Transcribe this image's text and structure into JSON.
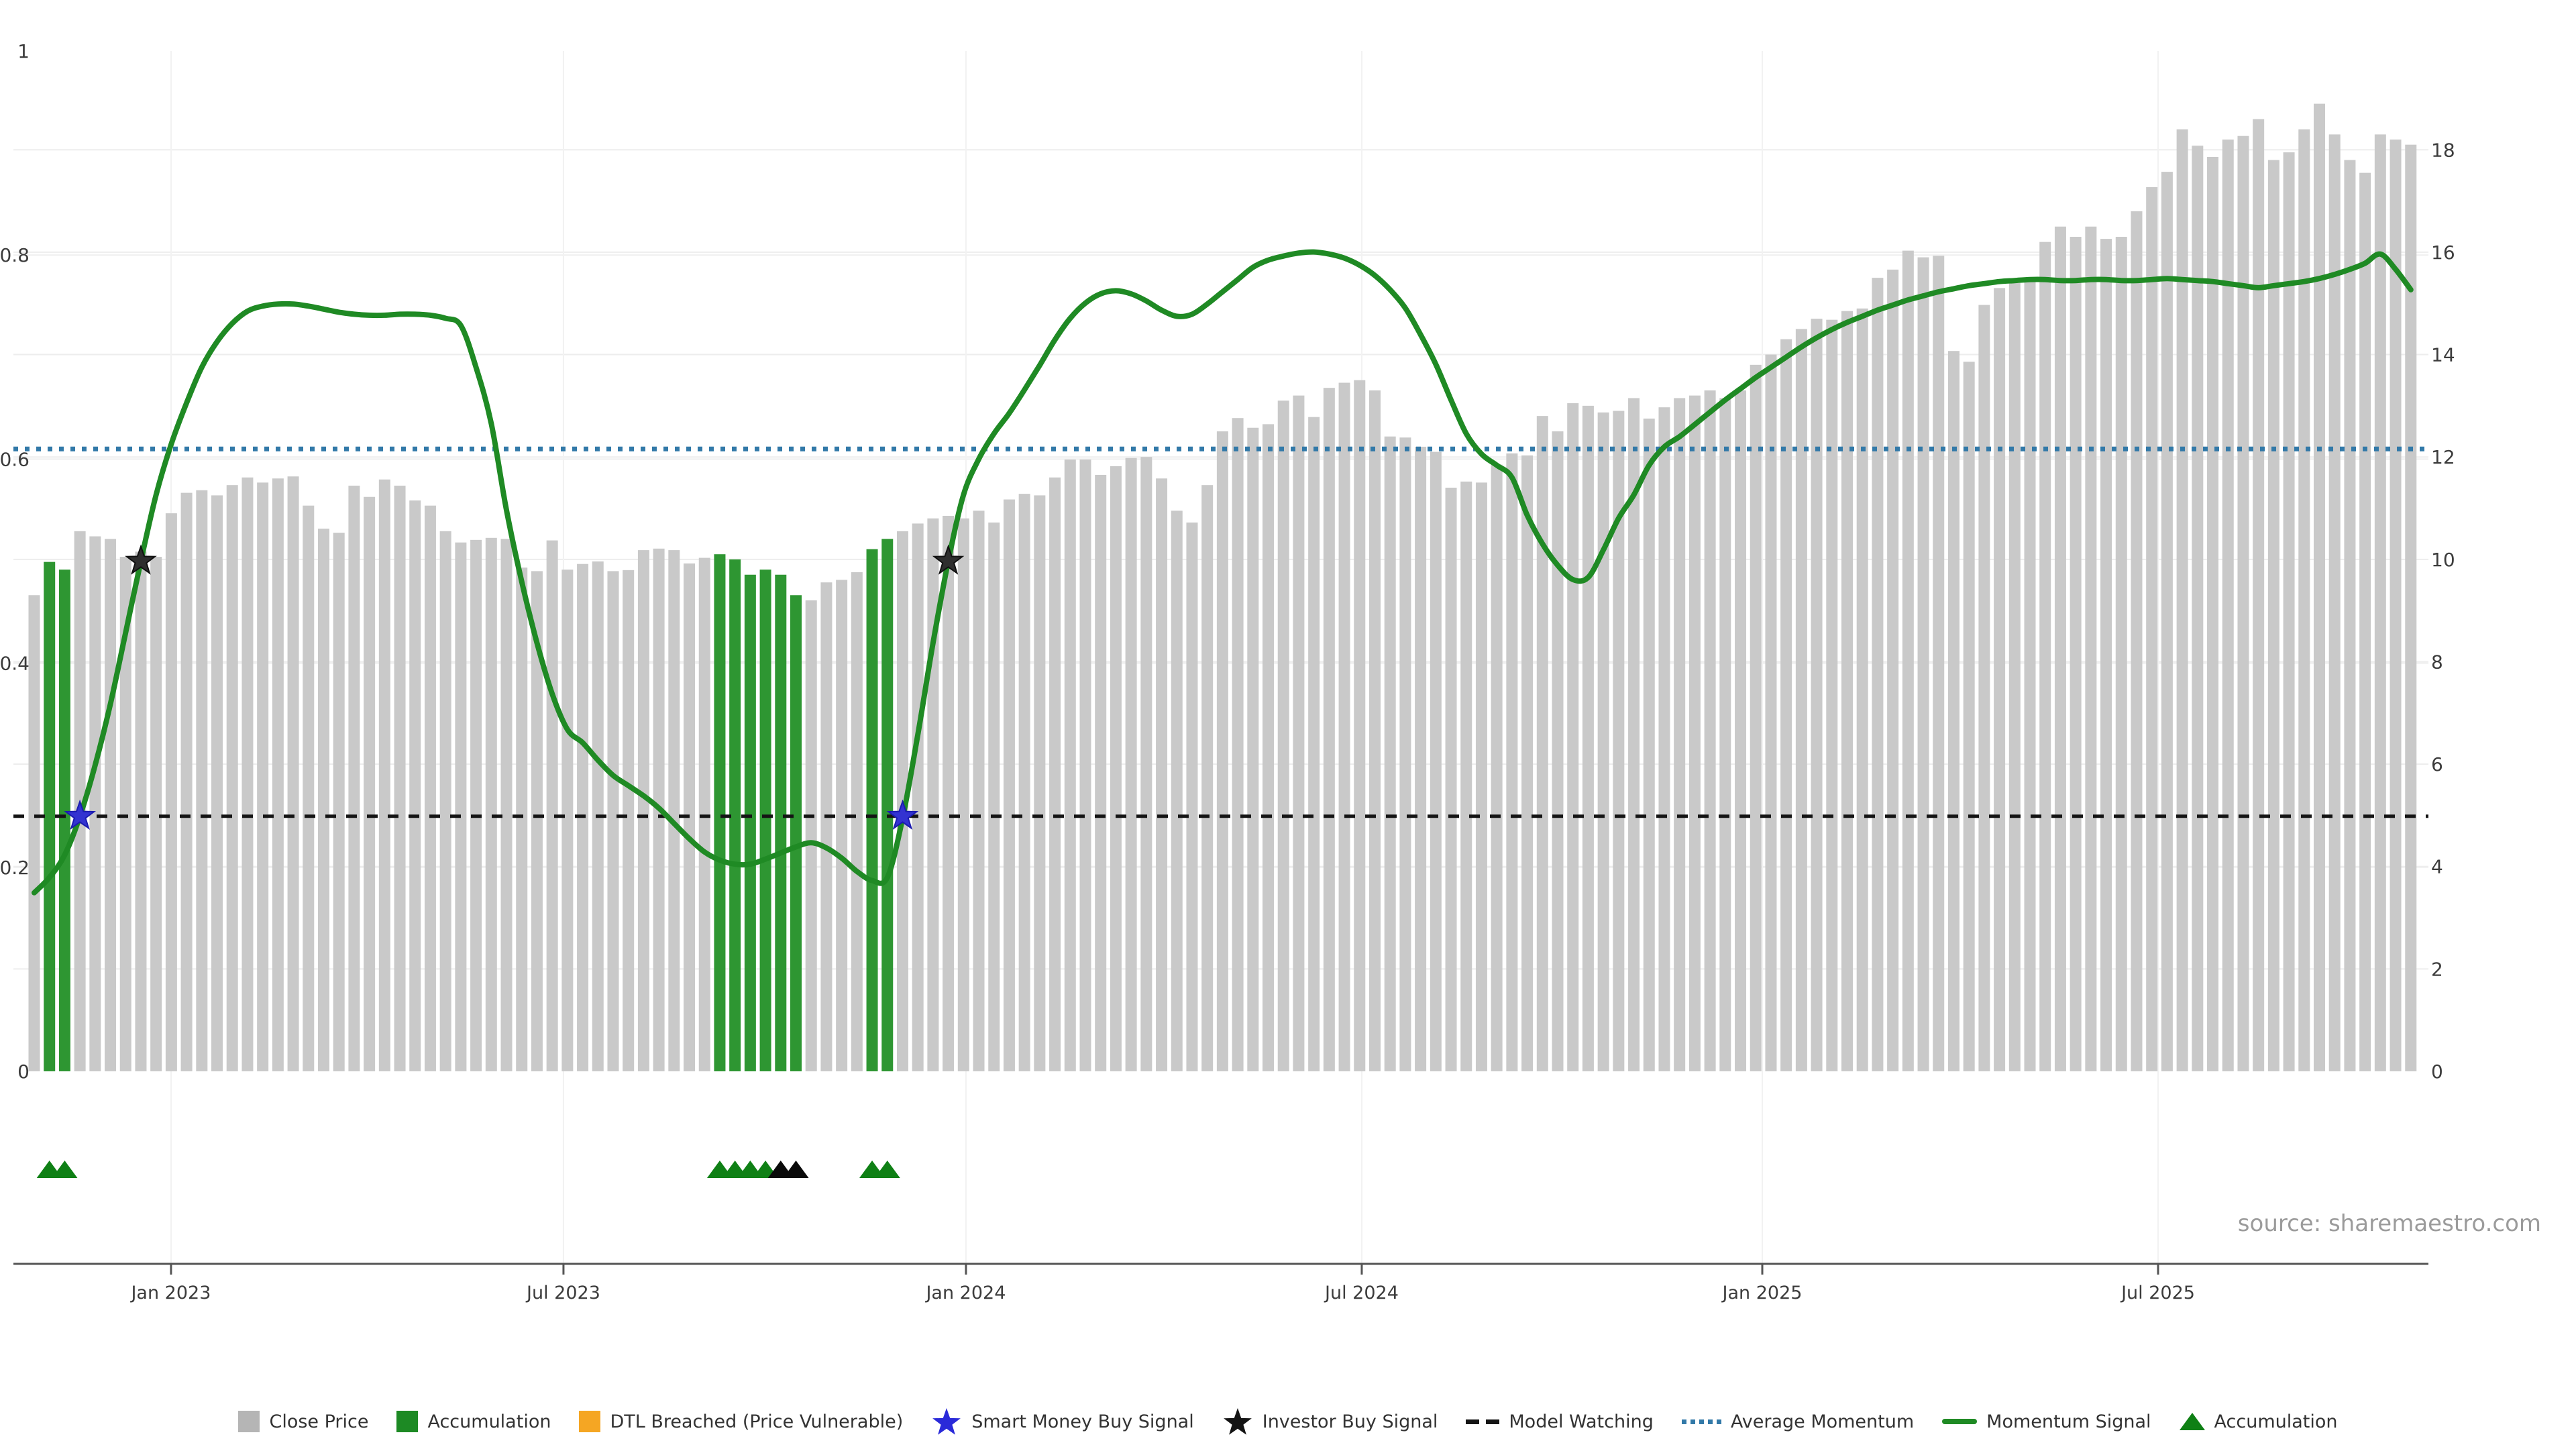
{
  "source_note": "source: sharemaestro.com",
  "legend": {
    "items": [
      {
        "label": "Close Price",
        "marker": "square",
        "color": "#b5b5b5"
      },
      {
        "label": "Accumulation",
        "marker": "square",
        "color": "#1d8a24"
      },
      {
        "label": "DTL Breached (Price Vulnerable)",
        "marker": "square",
        "color": "#f5a623"
      },
      {
        "label": "Smart Money Buy Signal",
        "marker": "star",
        "color": "#2a2ad9"
      },
      {
        "label": "Investor Buy Signal",
        "marker": "star",
        "color": "#141414"
      },
      {
        "label": "Model Watching",
        "marker": "dashes",
        "color": "#141414"
      },
      {
        "label": "Average Momentum",
        "marker": "dots",
        "color": "#3279a8"
      },
      {
        "label": "Momentum Signal",
        "marker": "line",
        "color": "#1f8a24"
      },
      {
        "label": "Accumulation",
        "marker": "triangle",
        "color": "#0f8015"
      }
    ]
  },
  "chart_data": {
    "type": "bar+line",
    "title": "",
    "x_ticks": {
      "labels": [
        "Jan 2023",
        "Jul 2023",
        "Jan 2024",
        "Jul 2024",
        "Jan 2025",
        "Jul 2025"
      ],
      "week_positions": [
        8.98,
        34.74,
        61.16,
        87.14,
        113.43,
        139.41
      ]
    },
    "left_axis": {
      "ticks": [
        0,
        0.2,
        0.4,
        0.6,
        0.8,
        1
      ],
      "range": [
        -0.19,
        1.0
      ]
    },
    "right_axis": {
      "ticks": [
        0,
        2,
        4,
        6,
        8,
        10,
        12,
        14,
        16,
        18
      ],
      "value_at_top": 19.93
    },
    "grid": true,
    "close_price_bars": {
      "color_default": "#c9c9c9",
      "color_accumulation": "#2e9632",
      "accumulation_weeks": [
        1,
        2,
        45,
        46,
        47,
        48,
        49,
        50,
        55,
        56
      ],
      "values": [
        9.3,
        9.95,
        9.8,
        10.55,
        10.45,
        10.4,
        10.05,
        10.15,
        10.05,
        10.9,
        11.3,
        11.35,
        11.25,
        11.45,
        11.6,
        11.5,
        11.58,
        11.62,
        11.05,
        10.6,
        10.52,
        11.44,
        11.22,
        11.56,
        11.44,
        11.15,
        11.05,
        10.55,
        10.33,
        10.38,
        10.42,
        10.4,
        9.84,
        9.77,
        10.37,
        9.8,
        9.91,
        9.96,
        9.77,
        9.79,
        10.18,
        10.21,
        10.18,
        9.92,
        10.03,
        10.1,
        10.0,
        9.7,
        9.8,
        9.7,
        9.3,
        9.2,
        9.55,
        9.6,
        9.75,
        10.2,
        10.4,
        10.55,
        10.7,
        10.8,
        10.85,
        10.8,
        10.95,
        10.72,
        11.17,
        11.28,
        11.25,
        11.6,
        11.95,
        11.95,
        11.65,
        11.82,
        11.98,
        12.0,
        11.58,
        10.95,
        10.72,
        11.45,
        12.5,
        12.76,
        12.57,
        12.64,
        13.1,
        13.2,
        12.78,
        13.35,
        13.45,
        13.5,
        13.3,
        12.4,
        12.38,
        12.2,
        12.1,
        11.4,
        11.52,
        11.5,
        11.85,
        12.07,
        12.03,
        12.8,
        12.5,
        13.05,
        13.0,
        12.87,
        12.9,
        13.15,
        12.75,
        12.97,
        13.15,
        13.2,
        13.3,
        13.15,
        13.3,
        13.8,
        14.0,
        14.3,
        14.5,
        14.7,
        14.68,
        14.85,
        14.9,
        15.5,
        15.66,
        16.03,
        15.9,
        15.93,
        14.07,
        13.86,
        14.97,
        15.3,
        15.4,
        15.5,
        16.2,
        16.5,
        16.3,
        16.5,
        16.26,
        16.3,
        16.8,
        17.27,
        17.57,
        18.4,
        18.08,
        17.86,
        18.2,
        18.27,
        18.6,
        17.8,
        17.95,
        18.4,
        18.9,
        18.3,
        17.8,
        17.55,
        18.3,
        18.2,
        18.1
      ]
    },
    "momentum_signal": {
      "color": "#1f8a24",
      "values": [
        0.175,
        0.19,
        0.212,
        0.25,
        0.3,
        0.36,
        0.43,
        0.5,
        0.565,
        0.615,
        0.655,
        0.69,
        0.715,
        0.733,
        0.745,
        0.75,
        0.752,
        0.752,
        0.75,
        0.747,
        0.744,
        0.742,
        0.741,
        0.741,
        0.742,
        0.742,
        0.741,
        0.738,
        0.731,
        0.69,
        0.635,
        0.55,
        0.48,
        0.42,
        0.37,
        0.335,
        0.322,
        0.305,
        0.29,
        0.28,
        0.27,
        0.258,
        0.243,
        0.228,
        0.215,
        0.207,
        0.203,
        0.203,
        0.208,
        0.214,
        0.22,
        0.224,
        0.219,
        0.209,
        0.196,
        0.187,
        0.19,
        0.248,
        0.33,
        0.42,
        0.5,
        0.565,
        0.6,
        0.625,
        0.645,
        0.668,
        0.692,
        0.717,
        0.738,
        0.753,
        0.762,
        0.765,
        0.762,
        0.755,
        0.746,
        0.74,
        0.742,
        0.752,
        0.764,
        0.776,
        0.788,
        0.795,
        0.799,
        0.802,
        0.803,
        0.801,
        0.797,
        0.79,
        0.78,
        0.766,
        0.748,
        0.722,
        0.693,
        0.658,
        0.625,
        0.605,
        0.594,
        0.582,
        0.545,
        0.517,
        0.496,
        0.482,
        0.484,
        0.511,
        0.542,
        0.565,
        0.594,
        0.612,
        0.622,
        0.634,
        0.646,
        0.658,
        0.669,
        0.68,
        0.69,
        0.7,
        0.71,
        0.719,
        0.727,
        0.734,
        0.74,
        0.746,
        0.751,
        0.756,
        0.76,
        0.764,
        0.767,
        0.77,
        0.772,
        0.774,
        0.775,
        0.776,
        0.776,
        0.775,
        0.775,
        0.776,
        0.776,
        0.775,
        0.775,
        0.776,
        0.777,
        0.776,
        0.775,
        0.774,
        0.772,
        0.77,
        0.768,
        0.77,
        0.772,
        0.774,
        0.777,
        0.781,
        0.786,
        0.792,
        0.801,
        0.786,
        0.766
      ]
    },
    "average_momentum": {
      "value": 0.61,
      "color": "#3279a8",
      "style": "dotted"
    },
    "model_watching": {
      "value": 0.25,
      "color": "#141414",
      "style": "dashed"
    },
    "smart_money_buy_signals": {
      "color": "#3333d1",
      "points": [
        {
          "week": 3,
          "value": 0.25
        },
        {
          "week": 57,
          "value": 0.25
        }
      ]
    },
    "investor_buy_signals": {
      "color": "#2e2e2e",
      "points": [
        {
          "week": 7,
          "value": 0.5
        },
        {
          "week": 60,
          "value": 0.5
        }
      ]
    },
    "accumulation_markers": {
      "row_value": -0.096,
      "green_color": "#0f8015",
      "black_color": "#0a0a0a",
      "green_weeks": [
        1,
        2,
        45,
        46,
        47,
        48,
        55,
        56
      ],
      "black_weeks": [
        49,
        50
      ]
    }
  }
}
